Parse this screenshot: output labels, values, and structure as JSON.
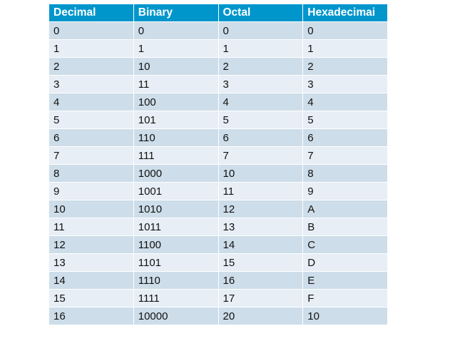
{
  "table": {
    "headers": [
      "Decimal",
      "Binary",
      "Octal",
      "Hexadecimai"
    ],
    "rows": [
      [
        "0",
        "0",
        "0",
        "0"
      ],
      [
        "1",
        "1",
        "1",
        "1"
      ],
      [
        "2",
        "10",
        "2",
        "2"
      ],
      [
        "3",
        "11",
        "3",
        "3"
      ],
      [
        "4",
        "100",
        "4",
        "4"
      ],
      [
        "5",
        "101",
        "5",
        "5"
      ],
      [
        "6",
        "110",
        "6",
        "6"
      ],
      [
        "7",
        "111",
        "7",
        "7"
      ],
      [
        "8",
        "1000",
        "10",
        "8"
      ],
      [
        "9",
        "1001",
        "11",
        "9"
      ],
      [
        "10",
        "1010",
        "12",
        "A"
      ],
      [
        "11",
        "1011",
        "13",
        "B"
      ],
      [
        "12",
        "1100",
        "14",
        "C"
      ],
      [
        "13",
        "1101",
        "15",
        "D"
      ],
      [
        "14",
        "1110",
        "16",
        "E"
      ],
      [
        "15",
        "1111",
        "17",
        "F"
      ],
      [
        "16",
        "10000",
        "20",
        "10"
      ]
    ]
  },
  "colors": {
    "header": "#0096cc",
    "row_dark": "#cddde9",
    "row_light": "#e7eef6"
  }
}
